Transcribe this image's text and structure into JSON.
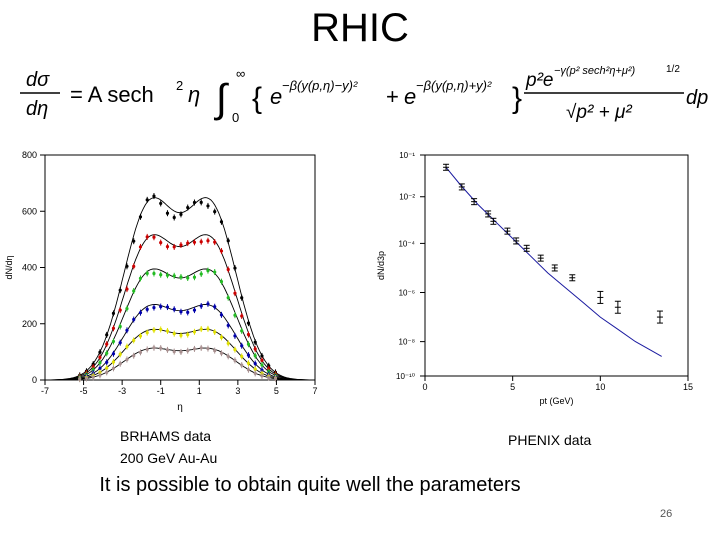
{
  "slide": {
    "title": "RHIC",
    "caption_left_line1": "BRHAMS  data",
    "caption_left_line2": "200 GeV Au-Au",
    "caption_right": "PHENIX  data",
    "note": "It is possible to obtain quite well the parameters",
    "page_number": "26"
  },
  "formula": {
    "lhs_num": "dσ",
    "lhs_den": "dη",
    "eq": "= A sech",
    "sq": "2",
    "eta": "η",
    "integral": "∫",
    "int_lower": "0",
    "int_upper": "∞",
    "brace_open": "{",
    "exp1": "e",
    "exp1_sup": "−β(y(p,η)−y)²",
    "plus": "+",
    "exp2": "e",
    "exp2_sup": "−β(y(p,η)+y)²",
    "brace_close": "}",
    "frac_num": "p²e",
    "frac_num_sup": "−γ(p² sech²η+μ²)",
    "frac_num_sup2": "1/2",
    "frac_den": "√p² + μ²",
    "dp": "dp"
  },
  "chart_data": [
    {
      "type": "line",
      "ylabel": "dN/dη",
      "xlabel": "η",
      "xlim": [
        -7,
        7
      ],
      "ylim": [
        0,
        800
      ],
      "xticks": [
        "-7",
        "-5",
        "-3",
        "-1",
        "1",
        "3",
        "5",
        "7"
      ],
      "yticks": [
        "0",
        "200",
        "400",
        "600",
        "800"
      ],
      "series": [
        {
          "color": "#000000",
          "peak": 640,
          "dip": 625
        },
        {
          "color": "#cc0000",
          "peak": 510,
          "dip": 495
        },
        {
          "color": "#22bb22",
          "peak": 390,
          "dip": 380
        },
        {
          "color": "#0000aa",
          "peak": 265,
          "dip": 255
        },
        {
          "color": "#e0e000",
          "peak": 178,
          "dip": 172
        },
        {
          "color": "#a89090",
          "peak": 112,
          "dip": 108
        }
      ]
    },
    {
      "type": "scatter",
      "ylabel": "dN/d3p",
      "xlabel": "pt (GeV)",
      "xlim": [
        0,
        15
      ],
      "ylim": [
        -10,
        -1
      ],
      "log_y": true,
      "xticks": [
        "0",
        "5",
        "10",
        "15"
      ],
      "yticks": [
        "10⁻¹",
        "10⁻²",
        "10⁻⁴",
        "10⁻⁶",
        "10⁻⁸",
        "10⁻¹⁰"
      ],
      "points": [
        {
          "x": 1.2,
          "y": -1.5
        },
        {
          "x": 2.1,
          "y": -2.3
        },
        {
          "x": 2.8,
          "y": -2.9
        },
        {
          "x": 3.6,
          "y": -3.4
        },
        {
          "x": 3.9,
          "y": -3.7
        },
        {
          "x": 4.7,
          "y": -4.1
        },
        {
          "x": 5.2,
          "y": -4.5
        },
        {
          "x": 5.8,
          "y": -4.8
        },
        {
          "x": 6.6,
          "y": -5.2
        },
        {
          "x": 7.4,
          "y": -5.6
        },
        {
          "x": 8.4,
          "y": -6.0
        },
        {
          "x": 10.0,
          "y": -6.8
        },
        {
          "x": 11.0,
          "y": -7.2
        },
        {
          "x": 13.4,
          "y": -7.6
        }
      ],
      "curve": [
        {
          "x": 1.2,
          "y": -1.5
        },
        {
          "x": 2,
          "y": -2.2
        },
        {
          "x": 3,
          "y": -3.0
        },
        {
          "x": 4,
          "y": -3.7
        },
        {
          "x": 5,
          "y": -4.4
        },
        {
          "x": 6,
          "y": -5.1
        },
        {
          "x": 7,
          "y": -5.8
        },
        {
          "x": 8,
          "y": -6.4
        },
        {
          "x": 9,
          "y": -7.0
        },
        {
          "x": 10,
          "y": -7.6
        },
        {
          "x": 11,
          "y": -8.1
        },
        {
          "x": 12,
          "y": -8.6
        },
        {
          "x": 13,
          "y": -9.0
        },
        {
          "x": 13.5,
          "y": -9.2
        }
      ]
    }
  ]
}
